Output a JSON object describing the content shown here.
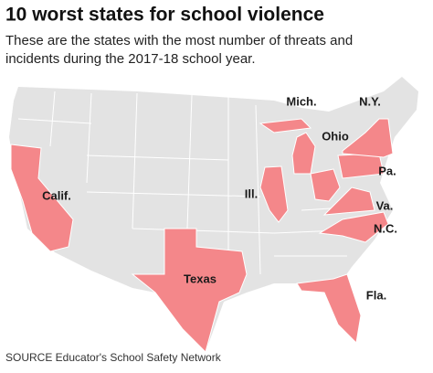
{
  "title": "10 worst states for school violence",
  "subtitle_lines": [
    "These are the states with the most number of threats and",
    "incidents during the 2017-18 school year."
  ],
  "states": [
    {
      "label": "Mich."
    },
    {
      "label": "N.Y."
    },
    {
      "label": "Ohio"
    },
    {
      "label": "Pa."
    },
    {
      "label": "Calif."
    },
    {
      "label": "Ill."
    },
    {
      "label": "Va."
    },
    {
      "label": "N.C."
    },
    {
      "label": "Texas"
    },
    {
      "label": "Fla."
    }
  ],
  "source": "SOURCE Educator's School Safety Network"
}
